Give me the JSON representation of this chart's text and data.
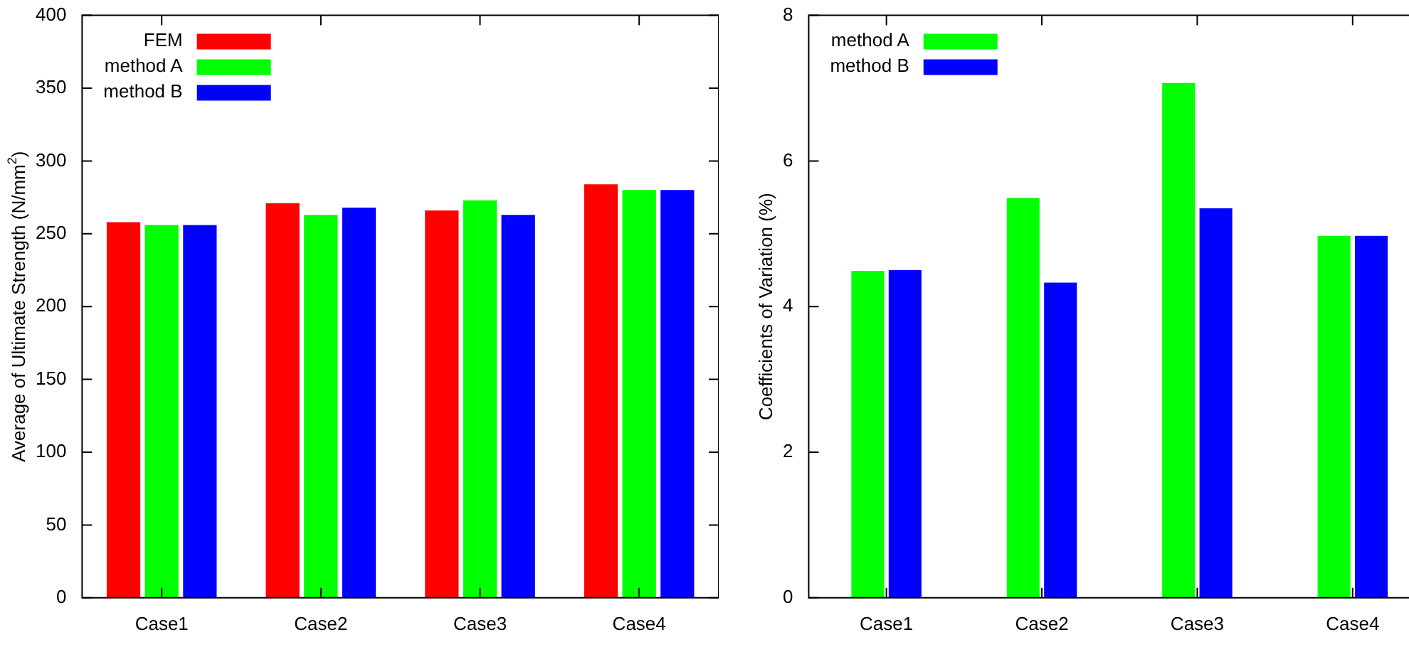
{
  "chart_data": [
    {
      "type": "bar",
      "ylabel": "Average of Ultimate Strength (N/mm$^{2}$)",
      "categories": [
        "Case1",
        "Case2",
        "Case3",
        "Case4"
      ],
      "ylim": [
        0,
        400
      ],
      "yticks": [
        0,
        50,
        100,
        150,
        200,
        250,
        300,
        350,
        400
      ],
      "legend": "top left",
      "series": [
        {
          "name": "FEM",
          "color": "#ff0000",
          "values": [
            258,
            271,
            266,
            284
          ]
        },
        {
          "name": "method A",
          "color": "#00ff00",
          "values": [
            256,
            263,
            273,
            280
          ]
        },
        {
          "name": "method B",
          "color": "#0000ff",
          "values": [
            256,
            268,
            263,
            280
          ]
        }
      ]
    },
    {
      "type": "bar",
      "ylabel": "Coefficients of Variation (%)",
      "categories": [
        "Case1",
        "Case2",
        "Case3",
        "Case4"
      ],
      "ylim": [
        0,
        8
      ],
      "yticks": [
        0,
        2,
        4,
        6,
        8
      ],
      "legend": "top left",
      "series": [
        {
          "name": "method A",
          "color": "#00ff00",
          "values": [
            4.49,
            5.49,
            7.07,
            4.97
          ]
        },
        {
          "name": "method B",
          "color": "#0000ff",
          "values": [
            4.5,
            4.33,
            5.35,
            4.97
          ]
        }
      ]
    }
  ]
}
